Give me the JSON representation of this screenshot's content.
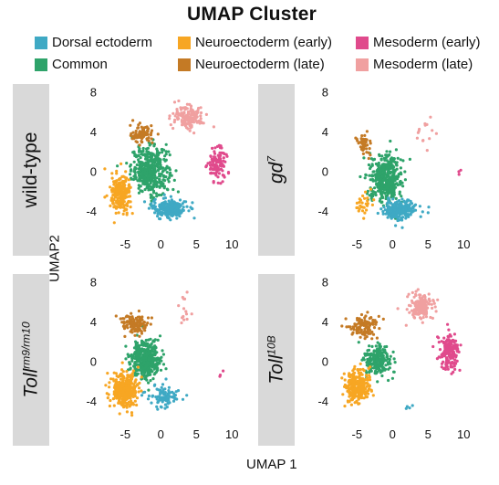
{
  "legend": {
    "title": "UMAP Cluster",
    "items": [
      {
        "label": "Dorsal ectoderm",
        "color": "#3fa9c4"
      },
      {
        "label": "Common",
        "color": "#2ea36a"
      },
      {
        "label": "Neuroectoderm (early)",
        "color": "#f7a623"
      },
      {
        "label": "Neuroectoderm (late)",
        "color": "#c47a25"
      },
      {
        "label": "Mesoderm (early)",
        "color": "#e04a8c"
      },
      {
        "label": "Mesoderm (late)",
        "color": "#f0a0a0"
      }
    ]
  },
  "axes": {
    "xlabel": "UMAP 1",
    "ylabel": "UMAP2"
  },
  "panels": {
    "wt": {
      "gene": "wild-type",
      "sup": ""
    },
    "gd7": {
      "gene": "gd",
      "sup": "7"
    },
    "toll_rm": {
      "gene": "Toll",
      "sup": "rm9/rm10"
    },
    "toll_10b": {
      "gene": "Toll",
      "sup": "10B"
    }
  },
  "chart_data": [
    {
      "type": "scatter",
      "panel": "wild-type",
      "xlim": [
        -8.5,
        11
      ],
      "ylim": [
        -6,
        8.5
      ],
      "xticks": [
        -5,
        0,
        5,
        10
      ],
      "yticks": [
        -4,
        0,
        4,
        8
      ],
      "clusters": [
        {
          "name": "Common",
          "color": "#2ea36a",
          "cx": -1.5,
          "cy": 0.2,
          "sx": 2.2,
          "sy": 2.0,
          "n": 420
        },
        {
          "name": "Dorsal ectoderm",
          "color": "#3fa9c4",
          "cx": 1.2,
          "cy": -3.6,
          "sx": 2.0,
          "sy": 0.8,
          "n": 220
        },
        {
          "name": "Neuroectoderm (early)",
          "color": "#f7a623",
          "cx": -5.6,
          "cy": -2.2,
          "sx": 1.2,
          "sy": 1.6,
          "n": 230
        },
        {
          "name": "Neuroectoderm (late)",
          "color": "#c47a25",
          "cx": -2.6,
          "cy": 3.8,
          "sx": 1.4,
          "sy": 0.8,
          "n": 90
        },
        {
          "name": "Mesoderm (late)",
          "color": "#f0a0a0",
          "cx": 3.8,
          "cy": 5.6,
          "sx": 1.8,
          "sy": 1.0,
          "n": 140
        },
        {
          "name": "Mesoderm (early)",
          "color": "#e04a8c",
          "cx": 8.0,
          "cy": 0.8,
          "sx": 1.2,
          "sy": 1.4,
          "n": 110
        }
      ]
    },
    {
      "type": "scatter",
      "panel": "gd7",
      "xlim": [
        -8.5,
        11
      ],
      "ylim": [
        -6,
        8.5
      ],
      "xticks": [
        -5,
        0,
        5,
        10
      ],
      "yticks": [
        -4,
        0,
        4,
        8
      ],
      "clusters": [
        {
          "name": "Common",
          "color": "#2ea36a",
          "cx": -1.0,
          "cy": -0.6,
          "sx": 1.9,
          "sy": 1.9,
          "n": 430
        },
        {
          "name": "Dorsal ectoderm",
          "color": "#3fa9c4",
          "cx": 1.0,
          "cy": -3.8,
          "sx": 1.8,
          "sy": 0.8,
          "n": 240
        },
        {
          "name": "Neuroectoderm (early)",
          "color": "#f7a623",
          "cx": -4.0,
          "cy": -3.2,
          "sx": 1.0,
          "sy": 1.0,
          "n": 30
        },
        {
          "name": "Neuroectoderm (late)",
          "color": "#c47a25",
          "cx": -4.0,
          "cy": 2.8,
          "sx": 0.8,
          "sy": 0.8,
          "n": 45
        },
        {
          "name": "Mesoderm (late)",
          "color": "#f0a0a0",
          "cx": 4.8,
          "cy": 4.0,
          "sx": 1.4,
          "sy": 1.8,
          "n": 14
        },
        {
          "name": "Mesoderm (early)",
          "color": "#e04a8c",
          "cx": 9.5,
          "cy": 0.0,
          "sx": 0.3,
          "sy": 0.5,
          "n": 3
        }
      ]
    },
    {
      "type": "scatter",
      "panel": "Toll rm9/rm10",
      "xlim": [
        -8.5,
        11
      ],
      "ylim": [
        -6,
        8.5
      ],
      "xticks": [
        -5,
        0,
        5,
        10
      ],
      "yticks": [
        -4,
        0,
        4,
        8
      ],
      "clusters": [
        {
          "name": "Common",
          "color": "#2ea36a",
          "cx": -2.0,
          "cy": 0.3,
          "sx": 1.8,
          "sy": 1.6,
          "n": 380
        },
        {
          "name": "Dorsal ectoderm",
          "color": "#3fa9c4",
          "cx": 0.5,
          "cy": -3.4,
          "sx": 1.8,
          "sy": 0.9,
          "n": 90
        },
        {
          "name": "Neuroectoderm (early)",
          "color": "#f7a623",
          "cx": -5.2,
          "cy": -2.8,
          "sx": 1.5,
          "sy": 1.4,
          "n": 330
        },
        {
          "name": "Neuroectoderm (late)",
          "color": "#c47a25",
          "cx": -3.6,
          "cy": 3.8,
          "sx": 1.6,
          "sy": 0.8,
          "n": 120
        },
        {
          "name": "Mesoderm (late)",
          "color": "#f0a0a0",
          "cx": 3.3,
          "cy": 5.5,
          "sx": 0.8,
          "sy": 1.2,
          "n": 14
        },
        {
          "name": "Mesoderm (early)",
          "color": "#e04a8c",
          "cx": 8.2,
          "cy": -1.2,
          "sx": 0.5,
          "sy": 0.6,
          "n": 3
        }
      ]
    },
    {
      "type": "scatter",
      "panel": "Toll 10B",
      "xlim": [
        -8.5,
        11
      ],
      "ylim": [
        -6,
        8.5
      ],
      "xticks": [
        -5,
        0,
        5,
        10
      ],
      "yticks": [
        -4,
        0,
        4,
        8
      ],
      "clusters": [
        {
          "name": "Common",
          "color": "#2ea36a",
          "cx": -2.0,
          "cy": 0.2,
          "sx": 1.6,
          "sy": 1.4,
          "n": 200
        },
        {
          "name": "Dorsal ectoderm",
          "color": "#3fa9c4",
          "cx": 2.2,
          "cy": -4.4,
          "sx": 0.5,
          "sy": 0.4,
          "n": 4
        },
        {
          "name": "Neuroectoderm (early)",
          "color": "#f7a623",
          "cx": -5.0,
          "cy": -2.4,
          "sx": 1.5,
          "sy": 1.4,
          "n": 300
        },
        {
          "name": "Neuroectoderm (late)",
          "color": "#c47a25",
          "cx": -4.0,
          "cy": 3.6,
          "sx": 1.8,
          "sy": 0.9,
          "n": 110
        },
        {
          "name": "Mesoderm (late)",
          "color": "#f0a0a0",
          "cx": 3.8,
          "cy": 5.6,
          "sx": 1.6,
          "sy": 1.0,
          "n": 160
        },
        {
          "name": "Mesoderm (early)",
          "color": "#e04a8c",
          "cx": 8.0,
          "cy": 1.2,
          "sx": 1.2,
          "sy": 1.6,
          "n": 170
        }
      ]
    }
  ]
}
